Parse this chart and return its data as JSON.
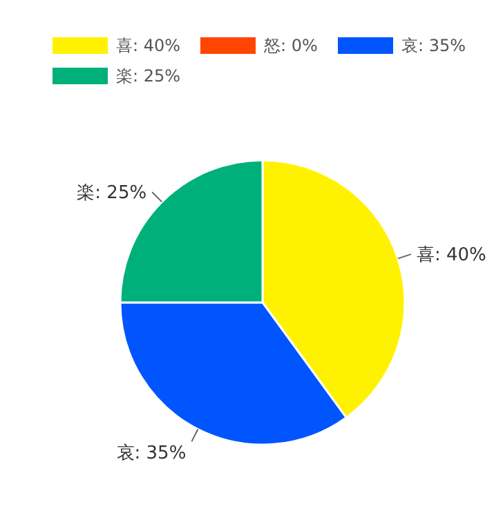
{
  "chart_data": {
    "type": "pie",
    "categories": [
      "喜: 40%",
      "怒: 0%",
      "哀: 35%",
      "楽: 25%"
    ],
    "values": [
      40,
      0,
      35,
      25
    ],
    "colors": [
      "#fff200",
      "#ff4500",
      "#0055ff",
      "#00b07a"
    ],
    "legend": "top left"
  }
}
